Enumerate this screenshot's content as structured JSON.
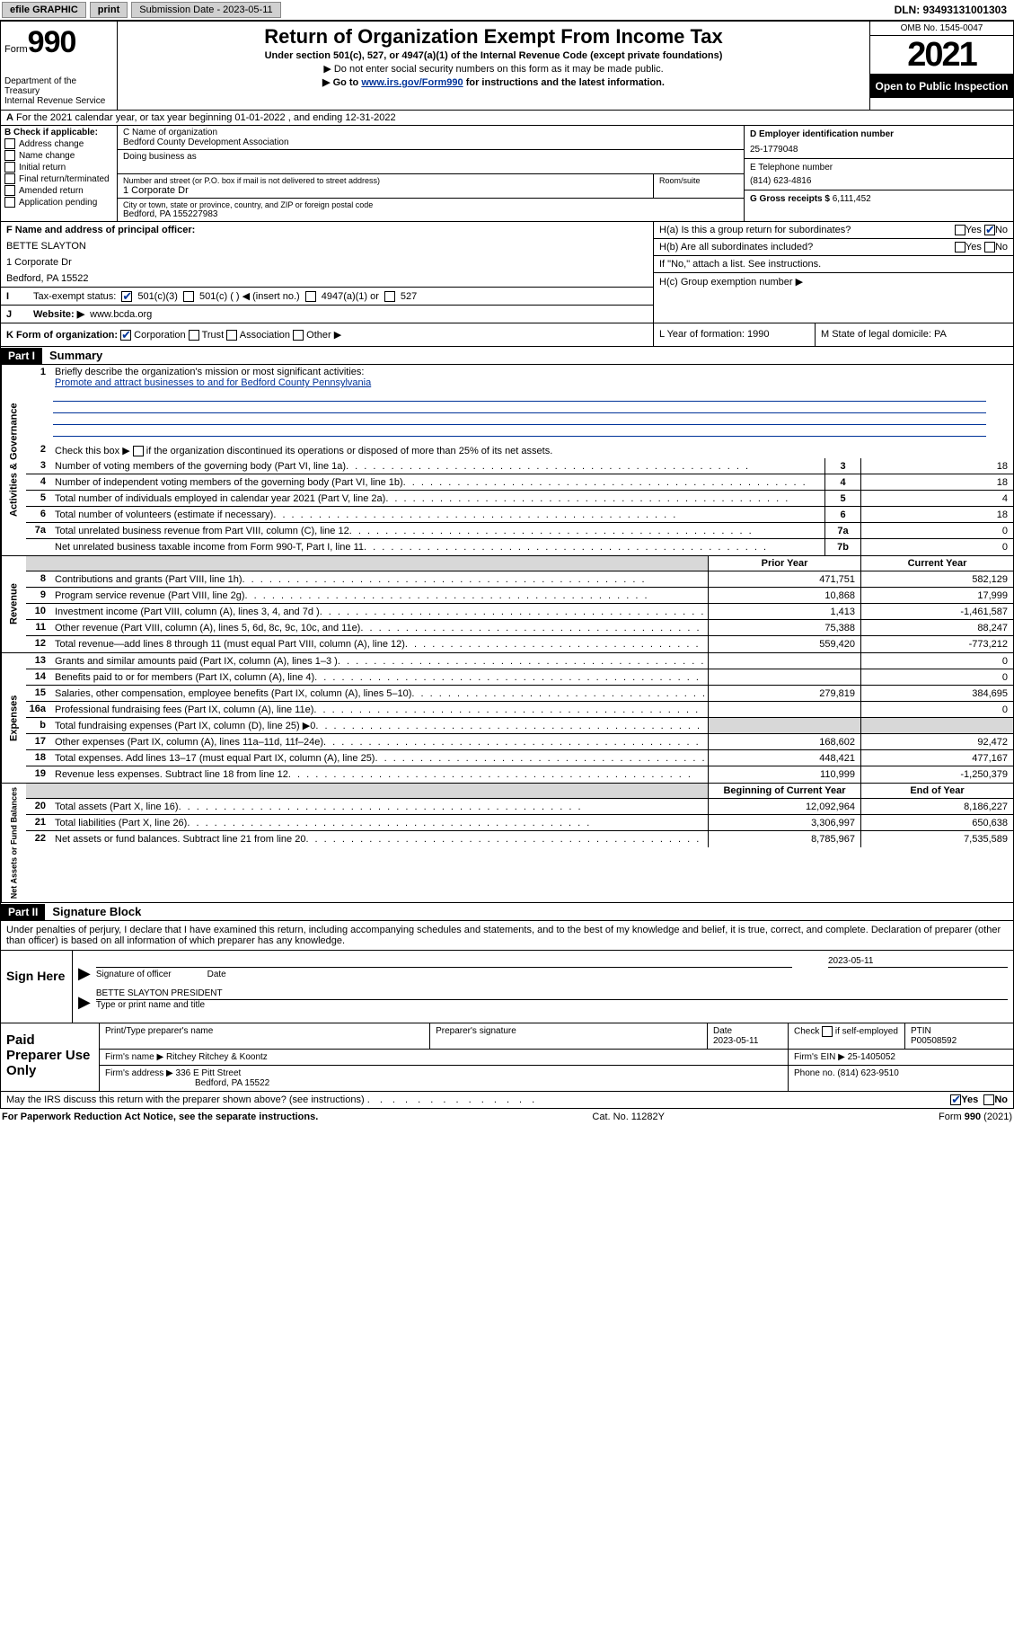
{
  "topbar": {
    "efile": "efile GRAPHIC",
    "print": "print",
    "submission_label": "Submission Date - 2023-05-11",
    "dln": "DLN: 93493131001303"
  },
  "header": {
    "form_label": "Form",
    "form_number": "990",
    "dept": "Department of the Treasury",
    "irs": "Internal Revenue Service",
    "title": "Return of Organization Exempt From Income Tax",
    "sub1": "Under section 501(c), 527, or 4947(a)(1) of the Internal Revenue Code (except private foundations)",
    "sub2": "▶ Do not enter social security numbers on this form as it may be made public.",
    "sub3_prefix": "▶ Go to ",
    "sub3_link": "www.irs.gov/Form990",
    "sub3_suffix": " for instructions and the latest information.",
    "omb": "OMB No. 1545-0047",
    "year": "2021",
    "open": "Open to Public Inspection"
  },
  "rowA": {
    "text": "For the 2021 calendar year, or tax year beginning 01-01-2022   , and ending 12-31-2022",
    "prefix": "A"
  },
  "entity": {
    "b_label": "B Check if applicable:",
    "checks": [
      "Address change",
      "Name change",
      "Initial return",
      "Final return/terminated",
      "Amended return",
      "Application pending"
    ],
    "c_label": "C Name of organization",
    "c_value": "Bedford County Development Association",
    "dba_label": "Doing business as",
    "street_label": "Number and street (or P.O. box if mail is not delivered to street address)",
    "room_label": "Room/suite",
    "street_value": "1 Corporate Dr",
    "city_label": "City or town, state or province, country, and ZIP or foreign postal code",
    "city_value": "Bedford, PA  155227983",
    "d_label": "D Employer identification number",
    "d_value": "25-1779048",
    "e_label": "E Telephone number",
    "e_value": "(814) 623-4816",
    "g_label": "G Gross receipts $",
    "g_value": "6,111,452"
  },
  "fm": {
    "f_label": "F  Name and address of principal officer:",
    "f_name": "BETTE SLAYTON",
    "f_addr1": "1 Corporate Dr",
    "f_addr2": "Bedford, PA  15522",
    "i_label": "Tax-exempt status:",
    "i_501c3": "501(c)(3)",
    "i_501c": "501(c) (    ) ◀ (insert no.)",
    "i_4947": "4947(a)(1) or",
    "i_527": "527",
    "j_label": "Website: ▶",
    "j_value": "www.bcda.org",
    "ha_label": "H(a)  Is this a group return for subordinates?",
    "ha_yes": "Yes",
    "ha_no": "No",
    "hb_label": "H(b)  Are all subordinates included?",
    "hb_yes": "Yes",
    "hb_no": "No",
    "hb_note": "If \"No,\" attach a list. See instructions.",
    "hc_label": "H(c)  Group exemption number ▶"
  },
  "rowK": {
    "k_label": "K Form of organization:",
    "corp": "Corporation",
    "trust": "Trust",
    "assoc": "Association",
    "other": "Other ▶",
    "l_label": "L Year of formation: 1990",
    "m_label": "M State of legal domicile: PA"
  },
  "part1": {
    "header": "Part I",
    "title": "Summary"
  },
  "summary": {
    "line1": "Briefly describe the organization's mission or most significant activities:",
    "line1_value": "Promote and attract businesses to and for Bedford County Pennsylvania",
    "line2": "Check this box ▶     if the organization discontinued its operations or disposed of more than 25% of its net assets.",
    "lines_gov": [
      {
        "n": "3",
        "d": "Number of voting members of the governing body (Part VI, line 1a)",
        "b": "3",
        "v": "18"
      },
      {
        "n": "4",
        "d": "Number of independent voting members of the governing body (Part VI, line 1b)",
        "b": "4",
        "v": "18"
      },
      {
        "n": "5",
        "d": "Total number of individuals employed in calendar year 2021 (Part V, line 2a)",
        "b": "5",
        "v": "4"
      },
      {
        "n": "6",
        "d": "Total number of volunteers (estimate if necessary)",
        "b": "6",
        "v": "18"
      },
      {
        "n": "7a",
        "d": "Total unrelated business revenue from Part VIII, column (C), line 12",
        "b": "7a",
        "v": "0"
      },
      {
        "n": "",
        "d": "Net unrelated business taxable income from Form 990-T, Part I, line 11",
        "b": "7b",
        "v": "0"
      }
    ],
    "col_prior": "Prior Year",
    "col_current": "Current Year",
    "lines_rev": [
      {
        "n": "8",
        "d": "Contributions and grants (Part VIII, line 1h)",
        "p": "471,751",
        "c": "582,129"
      },
      {
        "n": "9",
        "d": "Program service revenue (Part VIII, line 2g)",
        "p": "10,868",
        "c": "17,999"
      },
      {
        "n": "10",
        "d": "Investment income (Part VIII, column (A), lines 3, 4, and 7d )",
        "p": "1,413",
        "c": "-1,461,587"
      },
      {
        "n": "11",
        "d": "Other revenue (Part VIII, column (A), lines 5, 6d, 8c, 9c, 10c, and 11e)",
        "p": "75,388",
        "c": "88,247"
      },
      {
        "n": "12",
        "d": "Total revenue—add lines 8 through 11 (must equal Part VIII, column (A), line 12)",
        "p": "559,420",
        "c": "-773,212"
      }
    ],
    "lines_exp": [
      {
        "n": "13",
        "d": "Grants and similar amounts paid (Part IX, column (A), lines 1–3 )",
        "p": "",
        "c": "0"
      },
      {
        "n": "14",
        "d": "Benefits paid to or for members (Part IX, column (A), line 4)",
        "p": "",
        "c": "0"
      },
      {
        "n": "15",
        "d": "Salaries, other compensation, employee benefits (Part IX, column (A), lines 5–10)",
        "p": "279,819",
        "c": "384,695"
      },
      {
        "n": "16a",
        "d": "Professional fundraising fees (Part IX, column (A), line 11e)",
        "p": "",
        "c": "0"
      },
      {
        "n": "b",
        "d": "Total fundraising expenses (Part IX, column (D), line 25) ▶0",
        "p": "shade",
        "c": "shade",
        "noval": true
      },
      {
        "n": "17",
        "d": "Other expenses (Part IX, column (A), lines 11a–11d, 11f–24e)",
        "p": "168,602",
        "c": "92,472"
      },
      {
        "n": "18",
        "d": "Total expenses. Add lines 13–17 (must equal Part IX, column (A), line 25)",
        "p": "448,421",
        "c": "477,167"
      },
      {
        "n": "19",
        "d": "Revenue less expenses. Subtract line 18 from line 12",
        "p": "110,999",
        "c": "-1,250,379"
      }
    ],
    "col_begin": "Beginning of Current Year",
    "col_end": "End of Year",
    "lines_net": [
      {
        "n": "20",
        "d": "Total assets (Part X, line 16)",
        "p": "12,092,964",
        "c": "8,186,227"
      },
      {
        "n": "21",
        "d": "Total liabilities (Part X, line 26)",
        "p": "3,306,997",
        "c": "650,638"
      },
      {
        "n": "22",
        "d": "Net assets or fund balances. Subtract line 21 from line 20",
        "p": "8,785,967",
        "c": "7,535,589"
      }
    ]
  },
  "part2": {
    "header": "Part II",
    "title": "Signature Block"
  },
  "declaration": "Under penalties of perjury, I declare that I have examined this return, including accompanying schedules and statements, and to the best of my knowledge and belief, it is true, correct, and complete. Declaration of preparer (other than officer) is based on all information of which preparer has any knowledge.",
  "sign": {
    "here": "Sign Here",
    "sig_officer": "Signature of officer",
    "date_label": "Date",
    "date_value": "2023-05-11",
    "name_title": "BETTE SLAYTON PRESIDENT",
    "name_label": "Type or print name and title"
  },
  "preparer": {
    "label": "Paid Preparer Use Only",
    "h_name": "Print/Type preparer's name",
    "h_sig": "Preparer's signature",
    "h_date": "Date",
    "date_value": "2023-05-11",
    "h_check": "Check        if self-employed",
    "h_ptin": "PTIN",
    "ptin_value": "P00508592",
    "firm_name_label": "Firm's name     ▶",
    "firm_name": "Ritchey Ritchey & Koontz",
    "firm_ein_label": "Firm's EIN ▶",
    "firm_ein": "25-1405052",
    "firm_addr_label": "Firm's address ▶",
    "firm_addr1": "336 E Pitt Street",
    "firm_addr2": "Bedford, PA  15522",
    "phone_label": "Phone no.",
    "phone": "(814) 623-9510"
  },
  "footer": {
    "ask": "May the IRS discuss this return with the preparer shown above? (see instructions)",
    "yes": "Yes",
    "no": "No",
    "paperwork": "For Paperwork Reduction Act Notice, see the separate instructions.",
    "cat": "Cat. No. 11282Y",
    "form": "Form 990 (2021)"
  },
  "vtabs": {
    "gov": "Activities & Governance",
    "rev": "Revenue",
    "exp": "Expenses",
    "net": "Net Assets or Fund Balances"
  }
}
